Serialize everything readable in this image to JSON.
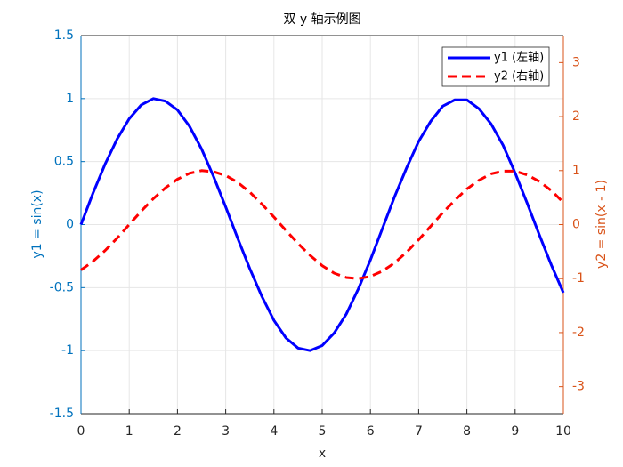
{
  "chart_data": {
    "type": "line",
    "title": "双 y 轴示例图",
    "xlabel": "x",
    "ylabel": "y1 = sin(x)",
    "y2label": "y2 = sin(x - 1)",
    "x": [
      0,
      0.25,
      0.5,
      0.75,
      1,
      1.25,
      1.5,
      1.75,
      2,
      2.25,
      2.5,
      2.75,
      3,
      3.25,
      3.5,
      3.75,
      4,
      4.25,
      4.5,
      4.75,
      5,
      5.25,
      5.5,
      5.75,
      6,
      6.25,
      6.5,
      6.75,
      7,
      7.25,
      7.5,
      7.75,
      8,
      8.25,
      8.5,
      8.75,
      9,
      9.25,
      9.5,
      9.75,
      10
    ],
    "series": [
      {
        "name": "y1 (左轴)",
        "color": "#0000ff",
        "line_style": "solid",
        "axis": "y",
        "values": [
          0,
          0.25,
          0.48,
          0.68,
          0.84,
          0.95,
          1.0,
          0.98,
          0.91,
          0.78,
          0.6,
          0.38,
          0.14,
          -0.11,
          -0.35,
          -0.57,
          -0.76,
          -0.9,
          -0.98,
          -1.0,
          -0.96,
          -0.86,
          -0.71,
          -0.51,
          -0.28,
          -0.03,
          0.22,
          0.45,
          0.66,
          0.82,
          0.94,
          0.99,
          0.99,
          0.92,
          0.8,
          0.63,
          0.41,
          0.17,
          -0.08,
          -0.32,
          -0.54
        ]
      },
      {
        "name": "y2 (右轴)",
        "color": "#ff0000",
        "line_style": "dashed",
        "axis": "y2",
        "values": [
          -0.84,
          -0.68,
          -0.48,
          -0.25,
          0,
          0.25,
          0.48,
          0.68,
          0.84,
          0.95,
          1.0,
          0.98,
          0.91,
          0.78,
          0.6,
          0.38,
          0.14,
          -0.11,
          -0.35,
          -0.57,
          -0.76,
          -0.9,
          -0.98,
          -1.0,
          -0.96,
          -0.86,
          -0.71,
          -0.51,
          -0.28,
          -0.03,
          0.22,
          0.45,
          0.66,
          0.82,
          0.94,
          0.99,
          0.99,
          0.92,
          0.8,
          0.63,
          0.41
        ]
      }
    ],
    "xlim": [
      0,
      10
    ],
    "xticks": [
      0,
      1,
      2,
      3,
      4,
      5,
      6,
      7,
      8,
      9,
      10
    ],
    "ylim": [
      -1.5,
      1.5
    ],
    "yticks": [
      -1.5,
      -1,
      -0.5,
      0,
      0.5,
      1,
      1.5
    ],
    "y2lim": [
      -3.5,
      3.5
    ],
    "y2ticks": [
      -3,
      -2,
      -1,
      0,
      1,
      2,
      3
    ],
    "ycolor": "#0072BD",
    "y2color": "#D95319",
    "grid": true,
    "legend": "northeast"
  }
}
